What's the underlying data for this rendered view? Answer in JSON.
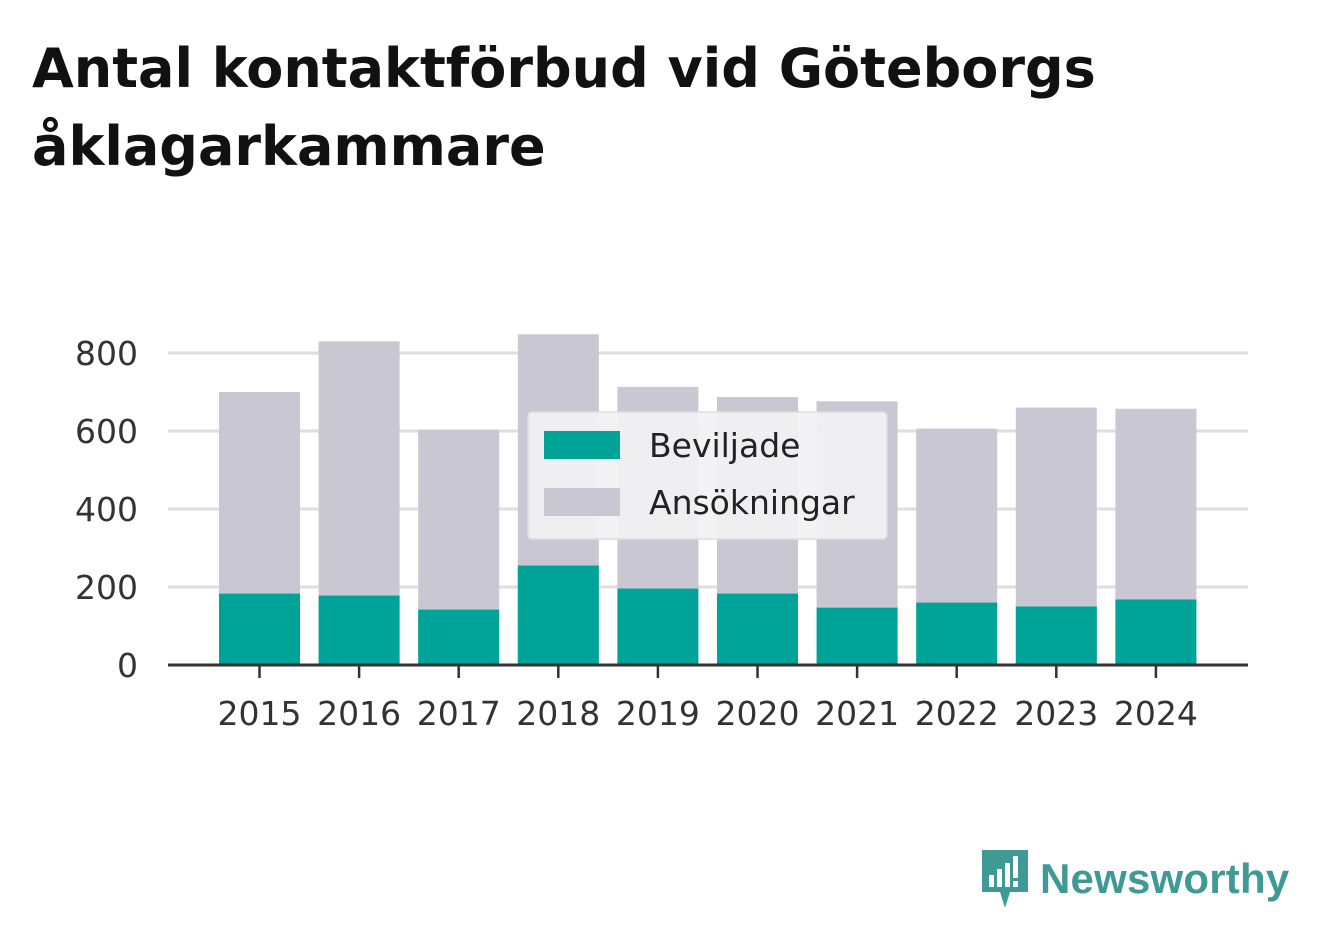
{
  "chart_data": {
    "type": "bar",
    "title": "Antal kontaktförbud vid Göteborgs åklagarkammare",
    "categories": [
      "2015",
      "2016",
      "2017",
      "2018",
      "2019",
      "2020",
      "2021",
      "2022",
      "2023",
      "2024"
    ],
    "series": [
      {
        "name": "Beviljade",
        "color": "#00a398",
        "values": [
          183,
          178,
          142,
          255,
          196,
          183,
          147,
          160,
          150,
          168
        ]
      },
      {
        "name": "Ansökningar",
        "color": "#c8c7d2",
        "values": [
          700,
          830,
          603,
          848,
          713,
          687,
          676,
          606,
          660,
          657
        ]
      }
    ],
    "ylim": [
      0,
      850
    ],
    "yticks": [
      0,
      200,
      400,
      600,
      800
    ],
    "xlabel": "",
    "ylabel": "",
    "grid": true,
    "legend": "top-center"
  },
  "brand": {
    "name": "Newsworthy",
    "color": "#3f9a95"
  }
}
